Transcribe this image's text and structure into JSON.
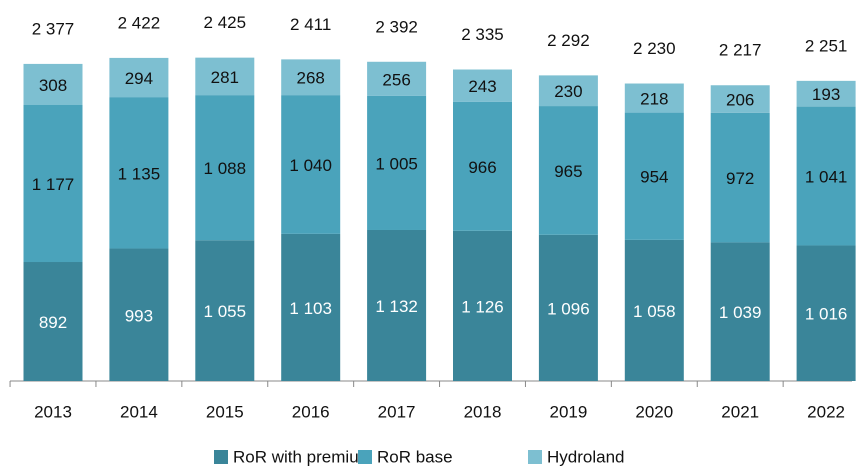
{
  "chart_data": {
    "type": "stacked_bar",
    "categories": [
      "2013",
      "2014",
      "2015",
      "2016",
      "2017",
      "2018",
      "2019",
      "2020",
      "2021",
      "2022"
    ],
    "series": [
      {
        "name": "RoR with premium",
        "color": "#3a8599",
        "label_color": "#ffffff",
        "values": [
          892,
          993,
          1055,
          1103,
          1132,
          1126,
          1096,
          1058,
          1039,
          1016
        ],
        "value_labels": [
          "892",
          "993",
          "1 055",
          "1 103",
          "1 132",
          "1 126",
          "1 096",
          "1 058",
          "1 039",
          "1 016"
        ]
      },
      {
        "name": "RoR base",
        "color": "#4aa3bb",
        "label_color": "#111111",
        "values": [
          1177,
          1135,
          1088,
          1040,
          1005,
          966,
          965,
          954,
          972,
          1041
        ],
        "value_labels": [
          "1 177",
          "1 135",
          "1 088",
          "1 040",
          "1 005",
          "966",
          "965",
          "954",
          "972",
          "1 041"
        ]
      },
      {
        "name": "Hydroland",
        "color": "#7dbfd1",
        "label_color": "#111111",
        "values": [
          308,
          294,
          281,
          268,
          256,
          243,
          230,
          218,
          206,
          193
        ],
        "value_labels": [
          "308",
          "294",
          "281",
          "268",
          "256",
          "243",
          "230",
          "218",
          "206",
          "193"
        ]
      }
    ],
    "totals": [
      2377,
      2422,
      2425,
      2411,
      2392,
      2335,
      2292,
      2230,
      2217,
      2251
    ],
    "total_labels": [
      "2 377",
      "2 422",
      "2 425",
      "2 411",
      "2 392",
      "2 335",
      "2 292",
      "2 230",
      "2 217",
      "2 251"
    ],
    "legend": "bottom"
  }
}
